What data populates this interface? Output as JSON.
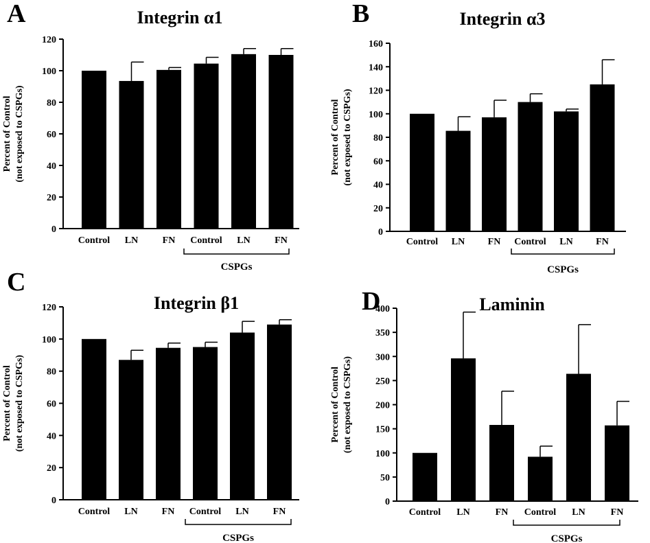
{
  "chart_data": [
    {
      "type": "bar",
      "panel_label": "A",
      "title": "Integrin α1",
      "ylabel_line1": "Percent of Control",
      "ylabel_line2": "(not exposed to CSPGs)",
      "categories": [
        "Control",
        "LN",
        "FN",
        "Control",
        "LN",
        "FN"
      ],
      "group_label": "CSPGs",
      "values": [
        100,
        93.5,
        100.5,
        104.5,
        110.5,
        110
      ],
      "errors": [
        0,
        12,
        1.5,
        4,
        3.5,
        4
      ],
      "ylim": [
        0,
        120
      ],
      "yticks": [
        0,
        20,
        40,
        60,
        80,
        100,
        120
      ],
      "bar_color": "#000000"
    },
    {
      "type": "bar",
      "panel_label": "B",
      "title": "Integrin α3",
      "ylabel_line1": "Percent of Control",
      "ylabel_line2": "(not exposed to CSPGs)",
      "categories": [
        "Control",
        "LN",
        "FN",
        "Control",
        "LN",
        "FN"
      ],
      "group_label": "CSPGs",
      "values": [
        100,
        85.5,
        97,
        110,
        102,
        125
      ],
      "errors": [
        0,
        12,
        14.5,
        7,
        2,
        21
      ],
      "ylim": [
        0,
        160
      ],
      "yticks": [
        0,
        20,
        40,
        60,
        80,
        100,
        120,
        140,
        160
      ],
      "bar_color": "#000000"
    },
    {
      "type": "bar",
      "panel_label": "C",
      "title": "Integrin β1",
      "ylabel_line1": "Percent of Control",
      "ylabel_line2": "(not exposed to CSPGs)",
      "categories": [
        "Control",
        "LN",
        "FN",
        "Control",
        "LN",
        "FN"
      ],
      "group_label": "CSPGs",
      "values": [
        100,
        87,
        94.5,
        95,
        104,
        109
      ],
      "errors": [
        0,
        6,
        3,
        3,
        7,
        3
      ],
      "ylim": [
        0,
        120
      ],
      "yticks": [
        0,
        20,
        40,
        60,
        80,
        100,
        120
      ],
      "bar_color": "#000000"
    },
    {
      "type": "bar",
      "panel_label": "D",
      "title": "Laminin",
      "ylabel_line1": "Percent of Control",
      "ylabel_line2": "(not exposed to CSPGs)",
      "categories": [
        "Control",
        "LN",
        "FN",
        "Control",
        "LN",
        "FN"
      ],
      "group_label": "CSPGs",
      "values": [
        100,
        296,
        158,
        92,
        264,
        157
      ],
      "errors": [
        0,
        96,
        70,
        22,
        102,
        50
      ],
      "ylim": [
        0,
        400
      ],
      "yticks": [
        0,
        50,
        100,
        150,
        200,
        250,
        300,
        350,
        400
      ],
      "bar_color": "#000000"
    }
  ]
}
